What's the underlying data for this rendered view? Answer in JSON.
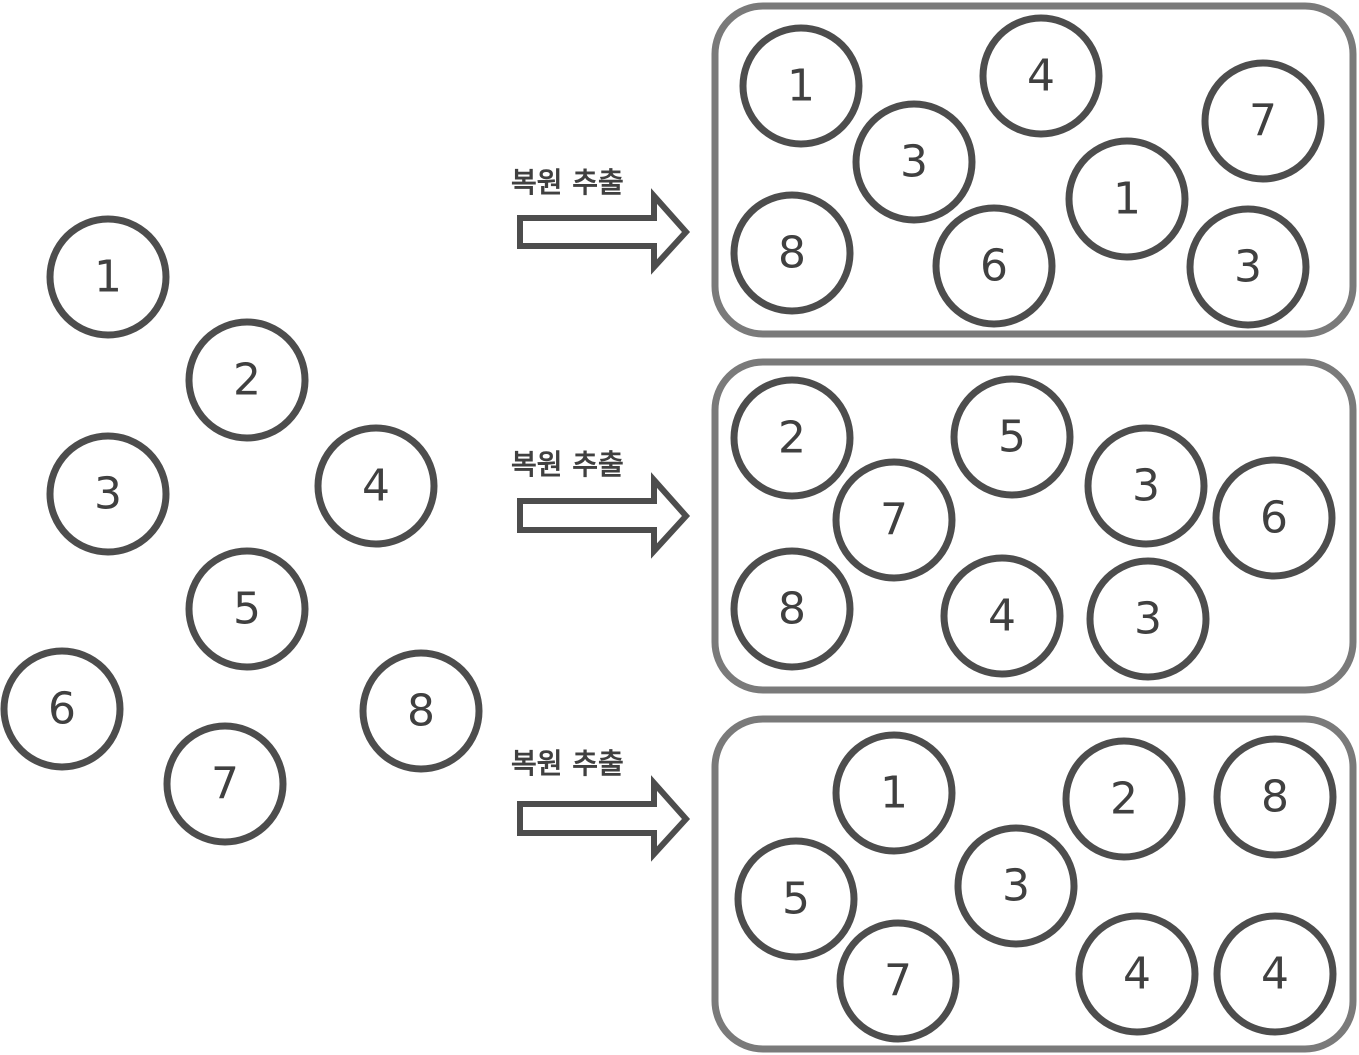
{
  "population": {
    "items": [
      "1",
      "2",
      "3",
      "4",
      "5",
      "6",
      "7",
      "8"
    ]
  },
  "arrow_label": "복원 추출",
  "samples": [
    {
      "items": [
        "1",
        "4",
        "7",
        "3",
        "1",
        "8",
        "6",
        "3"
      ]
    },
    {
      "items": [
        "2",
        "5",
        "3",
        "6",
        "7",
        "8",
        "4",
        "3"
      ]
    },
    {
      "items": [
        "1",
        "2",
        "8",
        "3",
        "5",
        "7",
        "4",
        "4"
      ]
    }
  ],
  "colors": {
    "ball_stroke": "#4d4d4d",
    "box_stroke": "#7a7a7a",
    "text": "#404040",
    "background": "#ffffff"
  }
}
